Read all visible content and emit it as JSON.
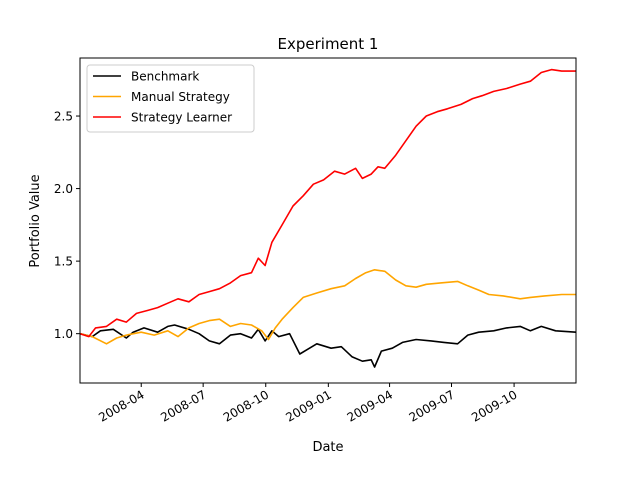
{
  "chart_data": {
    "type": "line",
    "title": "Experiment 1",
    "xlabel": "Date",
    "ylabel": "Portfolio Value",
    "xlim": [
      "2008-01-02",
      "2009-12-31"
    ],
    "ylim": [
      0.66,
      2.9
    ],
    "x_ticks": [
      {
        "date": "2008-04-01",
        "label": "2008-04"
      },
      {
        "date": "2008-07-01",
        "label": "2008-07"
      },
      {
        "date": "2008-10-01",
        "label": "2008-10"
      },
      {
        "date": "2009-01-01",
        "label": "2009-01"
      },
      {
        "date": "2009-04-01",
        "label": "2009-04"
      },
      {
        "date": "2009-07-01",
        "label": "2009-07"
      },
      {
        "date": "2009-10-01",
        "label": "2009-10"
      }
    ],
    "y_ticks": [
      1.0,
      1.5,
      2.0,
      2.5
    ],
    "y_tick_labels": [
      "1.0",
      "1.5",
      "2.0",
      "2.5"
    ],
    "grid": false,
    "legend": "upper-left",
    "series": [
      {
        "name": "Benchmark",
        "color": "#000000",
        "points": [
          [
            "2008-01-02",
            1.0
          ],
          [
            "2008-01-20",
            0.98
          ],
          [
            "2008-02-01",
            1.02
          ],
          [
            "2008-02-20",
            1.03
          ],
          [
            "2008-03-10",
            0.97
          ],
          [
            "2008-03-20",
            1.01
          ],
          [
            "2008-04-05",
            1.04
          ],
          [
            "2008-04-25",
            1.01
          ],
          [
            "2008-05-10",
            1.05
          ],
          [
            "2008-05-20",
            1.06
          ],
          [
            "2008-06-10",
            1.03
          ],
          [
            "2008-06-25",
            1.0
          ],
          [
            "2008-07-10",
            0.95
          ],
          [
            "2008-07-25",
            0.93
          ],
          [
            "2008-08-10",
            0.99
          ],
          [
            "2008-08-25",
            1.0
          ],
          [
            "2008-09-10",
            0.97
          ],
          [
            "2008-09-20",
            1.03
          ],
          [
            "2008-09-30",
            0.95
          ],
          [
            "2008-10-10",
            1.02
          ],
          [
            "2008-10-20",
            0.98
          ],
          [
            "2008-11-05",
            1.0
          ],
          [
            "2008-11-20",
            0.86
          ],
          [
            "2008-12-01",
            0.89
          ],
          [
            "2008-12-15",
            0.93
          ],
          [
            "2009-01-05",
            0.9
          ],
          [
            "2009-01-20",
            0.91
          ],
          [
            "2009-02-05",
            0.84
          ],
          [
            "2009-02-20",
            0.81
          ],
          [
            "2009-03-05",
            0.82
          ],
          [
            "2009-03-10",
            0.77
          ],
          [
            "2009-03-20",
            0.88
          ],
          [
            "2009-04-05",
            0.9
          ],
          [
            "2009-04-20",
            0.94
          ],
          [
            "2009-05-10",
            0.96
          ],
          [
            "2009-06-01",
            0.95
          ],
          [
            "2009-06-20",
            0.94
          ],
          [
            "2009-07-10",
            0.93
          ],
          [
            "2009-07-25",
            0.99
          ],
          [
            "2009-08-10",
            1.01
          ],
          [
            "2009-09-01",
            1.02
          ],
          [
            "2009-09-20",
            1.04
          ],
          [
            "2009-10-10",
            1.05
          ],
          [
            "2009-10-25",
            1.02
          ],
          [
            "2009-11-10",
            1.05
          ],
          [
            "2009-12-01",
            1.02
          ],
          [
            "2009-12-31",
            1.01
          ]
        ]
      },
      {
        "name": "Manual Strategy",
        "color": "#ffa500",
        "points": [
          [
            "2008-01-02",
            1.0
          ],
          [
            "2008-01-20",
            0.98
          ],
          [
            "2008-02-10",
            0.93
          ],
          [
            "2008-02-25",
            0.97
          ],
          [
            "2008-03-10",
            0.99
          ],
          [
            "2008-04-01",
            1.01
          ],
          [
            "2008-04-20",
            0.99
          ],
          [
            "2008-05-10",
            1.02
          ],
          [
            "2008-05-25",
            0.98
          ],
          [
            "2008-06-10",
            1.04
          ],
          [
            "2008-06-25",
            1.07
          ],
          [
            "2008-07-10",
            1.09
          ],
          [
            "2008-07-25",
            1.1
          ],
          [
            "2008-08-10",
            1.05
          ],
          [
            "2008-08-25",
            1.07
          ],
          [
            "2008-09-10",
            1.06
          ],
          [
            "2008-09-25",
            1.02
          ],
          [
            "2008-10-05",
            0.96
          ],
          [
            "2008-10-15",
            1.04
          ],
          [
            "2008-10-25",
            1.1
          ],
          [
            "2008-11-10",
            1.18
          ],
          [
            "2008-11-25",
            1.25
          ],
          [
            "2008-12-15",
            1.28
          ],
          [
            "2009-01-05",
            1.31
          ],
          [
            "2009-01-25",
            1.33
          ],
          [
            "2009-02-10",
            1.38
          ],
          [
            "2009-02-25",
            1.42
          ],
          [
            "2009-03-10",
            1.44
          ],
          [
            "2009-03-25",
            1.43
          ],
          [
            "2009-04-10",
            1.37
          ],
          [
            "2009-04-25",
            1.33
          ],
          [
            "2009-05-10",
            1.32
          ],
          [
            "2009-05-25",
            1.34
          ],
          [
            "2009-06-15",
            1.35
          ],
          [
            "2009-07-10",
            1.36
          ],
          [
            "2009-07-25",
            1.33
          ],
          [
            "2009-08-10",
            1.3
          ],
          [
            "2009-08-25",
            1.27
          ],
          [
            "2009-09-15",
            1.26
          ],
          [
            "2009-10-10",
            1.24
          ],
          [
            "2009-10-25",
            1.25
          ],
          [
            "2009-11-15",
            1.26
          ],
          [
            "2009-12-10",
            1.27
          ],
          [
            "2009-12-31",
            1.27
          ]
        ]
      },
      {
        "name": "Strategy Learner",
        "color": "#ff0000",
        "points": [
          [
            "2008-01-02",
            1.0
          ],
          [
            "2008-01-15",
            0.98
          ],
          [
            "2008-01-25",
            1.04
          ],
          [
            "2008-02-10",
            1.05
          ],
          [
            "2008-02-25",
            1.1
          ],
          [
            "2008-03-10",
            1.08
          ],
          [
            "2008-03-25",
            1.14
          ],
          [
            "2008-04-10",
            1.16
          ],
          [
            "2008-04-25",
            1.18
          ],
          [
            "2008-05-10",
            1.21
          ],
          [
            "2008-05-25",
            1.24
          ],
          [
            "2008-06-10",
            1.22
          ],
          [
            "2008-06-25",
            1.27
          ],
          [
            "2008-07-10",
            1.29
          ],
          [
            "2008-07-25",
            1.31
          ],
          [
            "2008-08-10",
            1.35
          ],
          [
            "2008-08-25",
            1.4
          ],
          [
            "2008-09-10",
            1.42
          ],
          [
            "2008-09-20",
            1.52
          ],
          [
            "2008-09-30",
            1.47
          ],
          [
            "2008-10-10",
            1.63
          ],
          [
            "2008-10-25",
            1.75
          ],
          [
            "2008-11-10",
            1.88
          ],
          [
            "2008-11-25",
            1.95
          ],
          [
            "2008-12-10",
            2.03
          ],
          [
            "2008-12-25",
            2.06
          ],
          [
            "2009-01-10",
            2.12
          ],
          [
            "2009-01-25",
            2.1
          ],
          [
            "2009-02-10",
            2.14
          ],
          [
            "2009-02-20",
            2.07
          ],
          [
            "2009-03-05",
            2.1
          ],
          [
            "2009-03-15",
            2.15
          ],
          [
            "2009-03-25",
            2.14
          ],
          [
            "2009-04-10",
            2.23
          ],
          [
            "2009-04-25",
            2.33
          ],
          [
            "2009-05-10",
            2.43
          ],
          [
            "2009-05-25",
            2.5
          ],
          [
            "2009-06-10",
            2.53
          ],
          [
            "2009-06-25",
            2.55
          ],
          [
            "2009-07-15",
            2.58
          ],
          [
            "2009-08-01",
            2.62
          ],
          [
            "2009-08-15",
            2.64
          ],
          [
            "2009-09-01",
            2.67
          ],
          [
            "2009-09-20",
            2.69
          ],
          [
            "2009-10-10",
            2.72
          ],
          [
            "2009-10-25",
            2.74
          ],
          [
            "2009-11-10",
            2.8
          ],
          [
            "2009-11-25",
            2.82
          ],
          [
            "2009-12-10",
            2.81
          ],
          [
            "2009-12-31",
            2.81
          ]
        ]
      }
    ]
  }
}
